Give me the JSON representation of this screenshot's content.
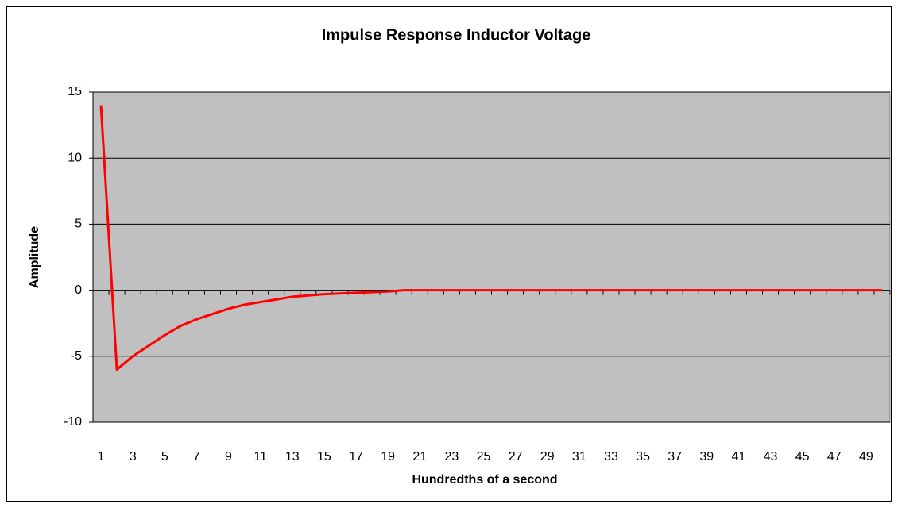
{
  "chart_data": {
    "type": "line",
    "title": "Impulse Response Inductor Voltage",
    "x_label": "Hundredths of a second",
    "y_label": "Amplitude",
    "categories": [
      1,
      null,
      3,
      null,
      5,
      null,
      7,
      null,
      9,
      null,
      11,
      null,
      13,
      null,
      15,
      null,
      17,
      null,
      19,
      null,
      21,
      null,
      23,
      null,
      25,
      null,
      27,
      null,
      29,
      null,
      31,
      null,
      33,
      null,
      35,
      null,
      37,
      null,
      39,
      null,
      41,
      null,
      43,
      null,
      45,
      null,
      47,
      null,
      49,
      null
    ],
    "values": [
      14,
      -6,
      -5,
      -4.2,
      -3.4,
      -2.7,
      -2.2,
      -1.8,
      -1.4,
      -1.1,
      -0.9,
      -0.7,
      -0.5,
      -0.4,
      -0.3,
      -0.25,
      -0.2,
      -0.15,
      -0.1,
      0,
      0,
      0,
      0,
      0,
      0,
      0,
      0,
      0,
      0,
      0,
      0,
      0,
      0,
      0,
      0,
      0,
      0,
      0,
      0,
      0,
      0,
      0,
      0,
      0,
      0,
      0,
      0,
      0,
      0,
      0
    ],
    "color": "#ff0000",
    "ylim": [
      -10,
      15
    ],
    "yticks": [
      -10,
      -5,
      0,
      5,
      10,
      15
    ],
    "grid": true
  }
}
